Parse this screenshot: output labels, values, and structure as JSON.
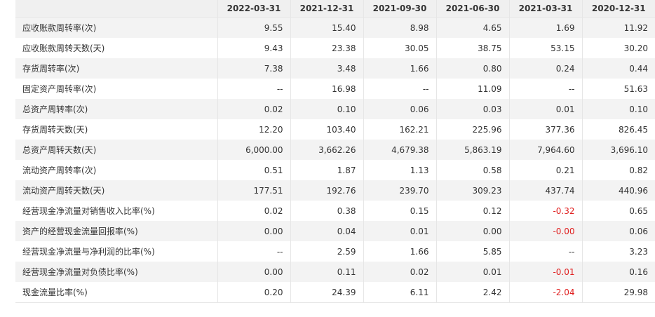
{
  "header": {
    "label_header": "",
    "dates": [
      "2022-03-31",
      "2021-12-31",
      "2021-09-30",
      "2021-06-30",
      "2021-03-31",
      "2020-12-31"
    ]
  },
  "rows": [
    {
      "label": "应收账款周转率(次)",
      "values": [
        "9.55",
        "15.40",
        "8.98",
        "4.65",
        "1.69",
        "11.92"
      ]
    },
    {
      "label": "应收账款周转天数(天)",
      "values": [
        "9.43",
        "23.38",
        "30.05",
        "38.75",
        "53.15",
        "30.20"
      ]
    },
    {
      "label": "存货周转率(次)",
      "values": [
        "7.38",
        "3.48",
        "1.66",
        "0.80",
        "0.24",
        "0.44"
      ]
    },
    {
      "label": "固定资产周转率(次)",
      "values": [
        "--",
        "16.98",
        "--",
        "11.09",
        "--",
        "51.63"
      ]
    },
    {
      "label": "总资产周转率(次)",
      "values": [
        "0.02",
        "0.10",
        "0.06",
        "0.03",
        "0.01",
        "0.10"
      ]
    },
    {
      "label": "存货周转天数(天)",
      "values": [
        "12.20",
        "103.40",
        "162.21",
        "225.96",
        "377.36",
        "826.45"
      ]
    },
    {
      "label": "总资产周转天数(天)",
      "values": [
        "6,000.00",
        "3,662.26",
        "4,679.38",
        "5,863.19",
        "7,964.60",
        "3,696.10"
      ]
    },
    {
      "label": "流动资产周转率(次)",
      "values": [
        "0.51",
        "1.87",
        "1.13",
        "0.58",
        "0.21",
        "0.82"
      ]
    },
    {
      "label": "流动资产周转天数(天)",
      "values": [
        "177.51",
        "192.76",
        "239.70",
        "309.23",
        "437.74",
        "440.96"
      ]
    },
    {
      "label": "经营现金净流量对销售收入比率(%)",
      "values": [
        "0.02",
        "0.38",
        "0.15",
        "0.12",
        "-0.32",
        "0.65"
      ]
    },
    {
      "label": "资产的经营现金流量回报率(%)",
      "values": [
        "0.00",
        "0.04",
        "0.01",
        "0.00",
        "-0.00",
        "0.06"
      ]
    },
    {
      "label": "经营现金净流量与净利润的比率(%)",
      "values": [
        "--",
        "2.59",
        "1.66",
        "5.85",
        "--",
        "3.23"
      ]
    },
    {
      "label": "经营现金净流量对负债比率(%)",
      "values": [
        "0.00",
        "0.11",
        "0.02",
        "0.01",
        "-0.01",
        "0.16"
      ]
    },
    {
      "label": "现金流量比率(%)",
      "values": [
        "0.20",
        "24.39",
        "6.11",
        "2.42",
        "-2.04",
        "29.98"
      ]
    }
  ],
  "colors": {
    "header_bg": "#f0f0f0",
    "stripe_bg": "#f3f3f3",
    "negative": "#e02020",
    "text": "#333333"
  }
}
